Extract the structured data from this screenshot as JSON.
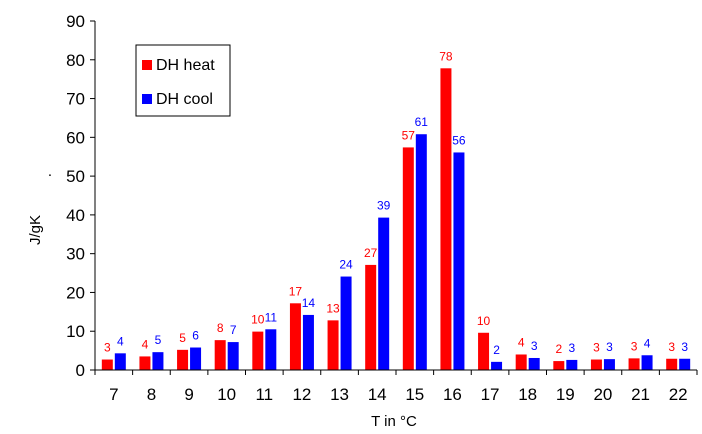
{
  "chart_data": {
    "type": "bar",
    "xlabel": "T in °C",
    "ylabel": "J/gK",
    "ylabel_mark": ".",
    "ylim": [
      0,
      90
    ],
    "yticks": [
      0,
      10,
      20,
      30,
      40,
      50,
      60,
      70,
      80,
      90
    ],
    "categories": [
      "7",
      "8",
      "9",
      "10",
      "11",
      "12",
      "13",
      "14",
      "15",
      "16",
      "17",
      "18",
      "19",
      "20",
      "21",
      "22"
    ],
    "series": [
      {
        "name": "DH heat",
        "color": "#ff0000",
        "values": [
          2.7,
          3.5,
          5.2,
          7.7,
          9.9,
          17.2,
          12.8,
          27.1,
          57.4,
          77.8,
          9.6,
          4.0,
          2.3,
          2.7,
          3.0,
          2.9
        ],
        "labels": [
          "3",
          "4",
          "5",
          "8",
          "10",
          "17",
          "13",
          "27",
          "57",
          "78",
          "10",
          "4",
          "2",
          "3",
          "3",
          "3"
        ]
      },
      {
        "name": "DH cool",
        "color": "#0000ff",
        "values": [
          4.3,
          4.6,
          5.8,
          7.2,
          10.5,
          14.2,
          24.1,
          39.3,
          60.8,
          56.1,
          2.1,
          3.1,
          2.6,
          2.8,
          3.8,
          2.9
        ],
        "labels": [
          "4",
          "5",
          "6",
          "7",
          "11",
          "14",
          "24",
          "39",
          "61",
          "56",
          "2",
          "3",
          "3",
          "3",
          "4",
          "3"
        ]
      }
    ],
    "legend_position": "top-left"
  }
}
